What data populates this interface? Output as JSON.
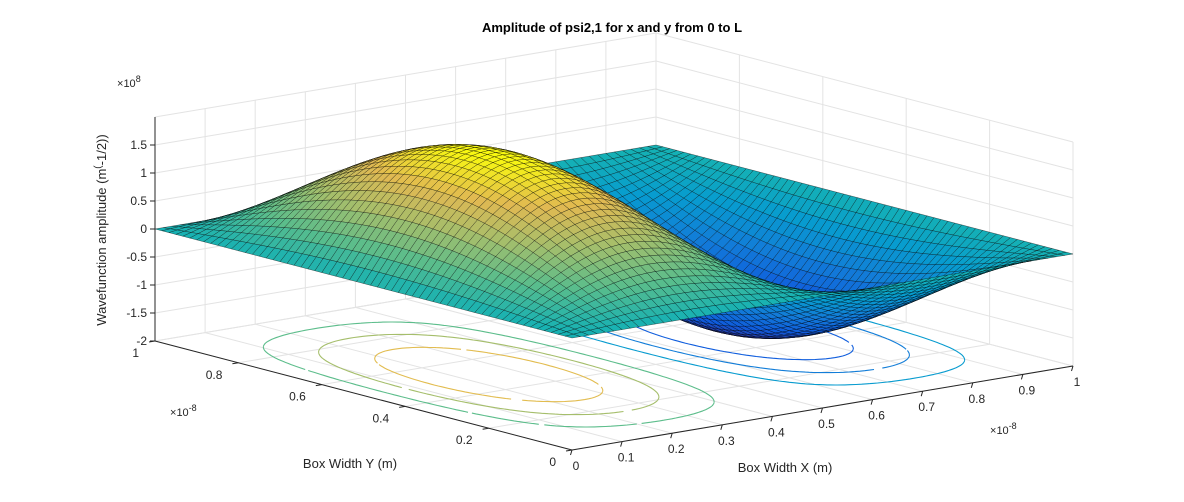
{
  "chart_data": {
    "type": "surface",
    "title": "Amplitude of psi2,1 for x and y from 0 to L",
    "xlabel": "Box Width X (m)",
    "ylabel": "Box Width Y (m)",
    "zlabel": "Wavefunction amplitude (m^(-1/2))",
    "zlabel_main": "Wavefunction amplitude (m",
    "zlabel_sup": "(",
    "zlabel_tail": "-1/2))",
    "function": "psi(x,y) = (2/L) * sin(2*pi*x/L) * sin(pi*y/L)",
    "L": 1e-08,
    "x_range": [
      0,
      1e-08
    ],
    "y_range": [
      0,
      1e-08
    ],
    "zlim": [
      -200000000.0,
      200000000.0
    ],
    "peak_amplitude": 200000000.0,
    "grid": true,
    "x_ticks": [
      "0",
      "0.1",
      "0.2",
      "0.3",
      "0.4",
      "0.5",
      "0.6",
      "0.7",
      "0.8",
      "0.9",
      "1"
    ],
    "y_ticks": [
      "0",
      "0.2",
      "0.4",
      "0.6",
      "0.8",
      "1"
    ],
    "z_ticks": [
      "-2",
      "-1.5",
      "-1",
      "-0.5",
      "0",
      "0.5",
      "1",
      "1.5"
    ],
    "x_exponent": "10",
    "x_exponent_power": "-8",
    "y_exponent": "10",
    "y_exponent_power": "-8",
    "z_exponent": "10",
    "z_exponent_power": "8",
    "times_sign": "×",
    "contour_levels": [
      -150000000.0,
      -100000000.0,
      -50000000.0,
      50000000.0,
      100000000.0,
      150000000.0
    ]
  }
}
